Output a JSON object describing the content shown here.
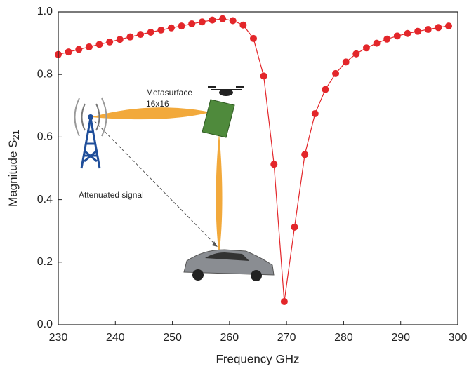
{
  "chart_data": {
    "type": "line",
    "markers": true,
    "color": "#e3262a",
    "x_label": "Frequency GHz",
    "y_label": "Magnitude S",
    "y_label_subscript": "21",
    "annotations": [
      "Metasurface",
      "16x16",
      "Attenuated signal"
    ],
    "x": [
      230,
      231.8,
      233.6,
      235.4,
      237.2,
      239.0,
      240.8,
      242.6,
      244.4,
      246.2,
      248.0,
      249.8,
      251.6,
      253.4,
      255.2,
      257.0,
      258.8,
      260.6,
      262.4,
      264.2,
      266.0,
      267.8,
      269.6,
      271.4,
      273.2,
      275.0,
      276.8,
      278.6,
      280.4,
      282.2,
      284.0,
      285.8,
      287.6,
      289.4,
      291.2,
      293.0,
      294.8,
      296.6,
      298.4
    ],
    "values": [
      0.864,
      0.872,
      0.88,
      0.888,
      0.896,
      0.904,
      0.912,
      0.92,
      0.928,
      0.935,
      0.942,
      0.949,
      0.955,
      0.962,
      0.968,
      0.974,
      0.978,
      0.972,
      0.958,
      0.915,
      0.795,
      0.513,
      0.074,
      0.312,
      0.544,
      0.675,
      0.752,
      0.803,
      0.84,
      0.866,
      0.885,
      0.9,
      0.913,
      0.923,
      0.931,
      0.938,
      0.944,
      0.95,
      0.955
    ],
    "xlim": [
      230,
      300
    ],
    "xticks": [
      230,
      240,
      250,
      260,
      270,
      280,
      290,
      300
    ],
    "ylim": [
      0,
      1
    ],
    "yticks": [
      {
        "value": 0,
        "label": "0.0"
      },
      0.2,
      0.4,
      0.6,
      0.8,
      {
        "value": 1,
        "label": "1.0"
      }
    ],
    "grid": false
  }
}
